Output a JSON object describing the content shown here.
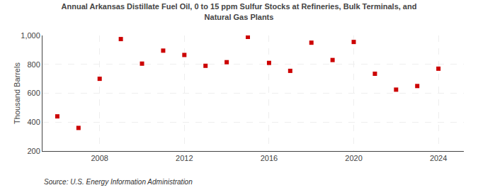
{
  "chart_data": {
    "type": "scatter",
    "title": "Annual Arkansas Distillate Fuel Oil, 0 to 15 ppm Sulfur Stocks at Refineries, Bulk Terminals, and\nNatural Gas Plants",
    "ylabel": "Thousand Barrels",
    "annotations": [
      "Source: U.S. Energy Information Administration"
    ],
    "x": [
      2006,
      2007,
      2008,
      2009,
      2010,
      2011,
      2012,
      2013,
      2014,
      2015,
      2016,
      2017,
      2018,
      2019,
      2020,
      2021,
      2022,
      2023,
      2024
    ],
    "values": [
      440,
      360,
      700,
      975,
      805,
      895,
      865,
      790,
      815,
      990,
      810,
      755,
      950,
      830,
      955,
      735,
      625,
      650,
      770
    ],
    "color": "#cc0000",
    "marker": "square",
    "xlim": [
      2005.3,
      2025.2
    ],
    "xticks": [
      2008,
      2012,
      2016,
      2020,
      2024
    ],
    "ylim": [
      200,
      1000
    ],
    "yticks": [
      200,
      400,
      600,
      800,
      {
        "value": 1000,
        "label": "1,000"
      }
    ],
    "grid": true
  }
}
